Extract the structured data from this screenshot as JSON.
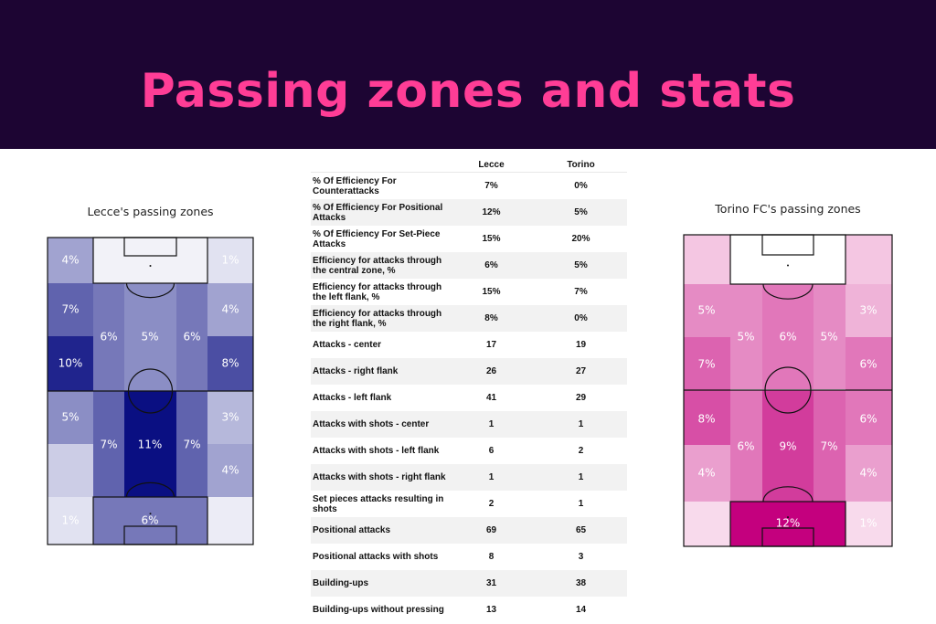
{
  "header": {
    "title": "Passing zones and stats"
  },
  "colors": {
    "banner_bg": "#1d0533",
    "title": "#ff3d96",
    "lecce_scale_low": "#f7f7fc",
    "lecce_scale_high": "#0a0f82",
    "torino_scale_low": "#fdeef6",
    "torino_scale_high": "#c4007e"
  },
  "chart_data": [
    {
      "type": "heatmap",
      "title": "Lecce's passing zones",
      "team": "Lecce",
      "units": "%",
      "zones": [
        {
          "zone": "top-left-wing",
          "value": 4,
          "label": "4%"
        },
        {
          "zone": "top-right-wing",
          "value": 1,
          "label": "1%"
        },
        {
          "zone": "upper-left-wing",
          "value": 7,
          "label": "7%"
        },
        {
          "zone": "upper-right-wing",
          "value": 4,
          "label": "4%"
        },
        {
          "zone": "upper-left-halfspace",
          "value": 6,
          "label": "6%"
        },
        {
          "zone": "upper-center",
          "value": 5,
          "label": "5%"
        },
        {
          "zone": "upper-right-halfspace",
          "value": 6,
          "label": "6%"
        },
        {
          "zone": "middle-left-wing",
          "value": 10,
          "label": "10%"
        },
        {
          "zone": "middle-right-wing",
          "value": 8,
          "label": "8%"
        },
        {
          "zone": "lower-left-wing",
          "value": 5,
          "label": "5%"
        },
        {
          "zone": "lower-right-wing",
          "value": 3,
          "label": "3%"
        },
        {
          "zone": "lower-left-halfspace",
          "value": 7,
          "label": "7%"
        },
        {
          "zone": "lower-center",
          "value": 11,
          "label": "11%"
        },
        {
          "zone": "lower-right-halfspace",
          "value": 7,
          "label": "7%"
        },
        {
          "zone": "deep-left-wing",
          "value": 2,
          "label": ""
        },
        {
          "zone": "deep-right-wing",
          "value": 4,
          "label": "4%"
        },
        {
          "zone": "bottom-left-wing",
          "value": 1,
          "label": "1%"
        },
        {
          "zone": "bottom-box",
          "value": 6,
          "label": "6%"
        },
        {
          "zone": "bottom-right-wing",
          "value": 0.5,
          "label": ""
        }
      ]
    },
    {
      "type": "heatmap",
      "title": "Torino FC's passing zones",
      "team": "Torino",
      "units": "%",
      "zones": [
        {
          "zone": "top-left-wing",
          "value": 2,
          "label": ""
        },
        {
          "zone": "top-right-wing",
          "value": 2,
          "label": ""
        },
        {
          "zone": "upper-left-wing",
          "value": 5,
          "label": "5%"
        },
        {
          "zone": "upper-right-wing",
          "value": 3,
          "label": "3%"
        },
        {
          "zone": "left-halfspace",
          "value": 5,
          "label": "5%"
        },
        {
          "zone": "upper-center",
          "value": 6,
          "label": "6%"
        },
        {
          "zone": "right-halfspace",
          "value": 5,
          "label": "5%"
        },
        {
          "zone": "middle-left-wing",
          "value": 7,
          "label": "7%"
        },
        {
          "zone": "middle-right-wing",
          "value": 6,
          "label": "6%"
        },
        {
          "zone": "lower-left-wing",
          "value": 8,
          "label": "8%"
        },
        {
          "zone": "lower-right-wing",
          "value": 6,
          "label": "6%"
        },
        {
          "zone": "lower-left-halfspace",
          "value": 6,
          "label": "6%"
        },
        {
          "zone": "lower-center",
          "value": 9,
          "label": "9%"
        },
        {
          "zone": "lower-right-halfspace",
          "value": 7,
          "label": "7%"
        },
        {
          "zone": "deep-left-wing",
          "value": 4,
          "label": "4%"
        },
        {
          "zone": "deep-right-wing",
          "value": 4,
          "label": "4%"
        },
        {
          "zone": "bottom-left-wing",
          "value": 1,
          "label": ""
        },
        {
          "zone": "bottom-box",
          "value": 12,
          "label": "12%"
        },
        {
          "zone": "bottom-right-wing",
          "value": 1,
          "label": "1%"
        }
      ]
    },
    {
      "type": "table",
      "columns": [
        "",
        "Lecce",
        "Torino"
      ],
      "rows": [
        [
          "% Of Efficiency For Counterattacks",
          "7%",
          "0%"
        ],
        [
          "% Of Efficiency For Positional Attacks",
          "12%",
          "5%"
        ],
        [
          "% Of Efficiency For Set-Piece Attacks",
          "15%",
          "20%"
        ],
        [
          "Efficiency for attacks through the central zone, %",
          "6%",
          "5%"
        ],
        [
          "Efficiency for attacks through the left flank, %",
          "15%",
          "7%"
        ],
        [
          "Efficiency for attacks through the right flank, %",
          "8%",
          "0%"
        ],
        [
          "Attacks - center",
          "17",
          "19"
        ],
        [
          "Attacks - right flank",
          "26",
          "27"
        ],
        [
          "Attacks - left flank",
          "41",
          "29"
        ],
        [
          "Attacks with shots - center",
          "1",
          "1"
        ],
        [
          "Attacks with shots - left flank",
          "6",
          "2"
        ],
        [
          "Attacks with shots - right flank",
          "1",
          "1"
        ],
        [
          "Set pieces attacks resulting in shots",
          "2",
          "1"
        ],
        [
          "Positional attacks",
          "69",
          "65"
        ],
        [
          "Positional attacks with shots",
          "8",
          "3"
        ],
        [
          "Building-ups",
          "31",
          "38"
        ],
        [
          "Building-ups without pressing",
          "13",
          "14"
        ]
      ]
    }
  ]
}
